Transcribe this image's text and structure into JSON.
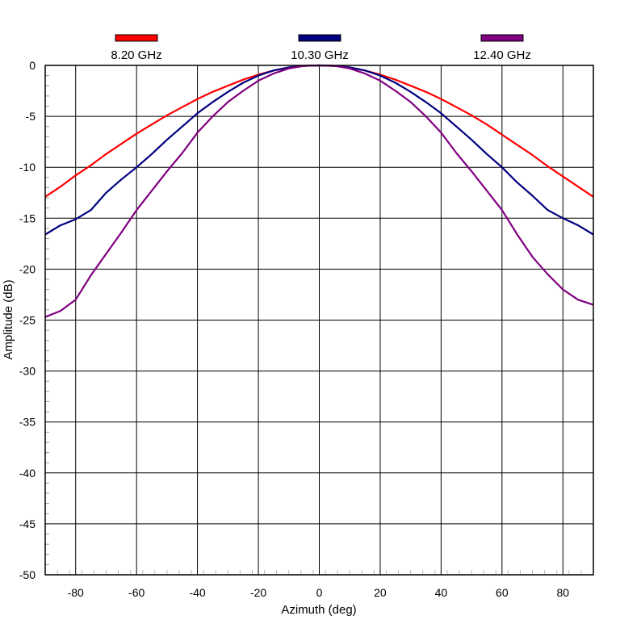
{
  "chart_data": {
    "type": "line",
    "xlabel": "Azimuth (deg)",
    "ylabel": "Amplitude (dB)",
    "xlim": [
      -90,
      90
    ],
    "ylim": [
      -50,
      0
    ],
    "grid": true,
    "legend_position": "top",
    "x_ticks": [
      -80,
      -60,
      -40,
      -20,
      0,
      20,
      40,
      60,
      80
    ],
    "y_ticks": [
      0,
      -5,
      -10,
      -15,
      -20,
      -25,
      -30,
      -35,
      -40,
      -45,
      -50
    ],
    "x_tick_labels": [
      "-80",
      "-60",
      "-40",
      "-20",
      "0",
      "20",
      "40",
      "60",
      "80"
    ],
    "y_tick_labels": [
      "0",
      "-5",
      "-10",
      "-15",
      "-20",
      "-25",
      "-30",
      "-35",
      "-40",
      "-45",
      "-50"
    ],
    "x": [
      -90,
      -85,
      -80,
      -75,
      -70,
      -65,
      -60,
      -55,
      -50,
      -45,
      -40,
      -35,
      -30,
      -25,
      -20,
      -15,
      -10,
      -5,
      0,
      5,
      10,
      15,
      20,
      25,
      30,
      35,
      40,
      45,
      50,
      55,
      60,
      65,
      70,
      75,
      80,
      85,
      90
    ],
    "series": [
      {
        "name": "8.20 GHz",
        "color": "#ff0000",
        "values": [
          -12.9,
          -11.9,
          -10.8,
          -9.8,
          -8.7,
          -7.7,
          -6.7,
          -5.8,
          -4.9,
          -4.1,
          -3.3,
          -2.6,
          -2.0,
          -1.4,
          -0.9,
          -0.5,
          -0.2,
          -0.05,
          0,
          -0.05,
          -0.2,
          -0.5,
          -0.9,
          -1.4,
          -2.0,
          -2.6,
          -3.3,
          -4.1,
          -4.9,
          -5.8,
          -6.8,
          -7.8,
          -8.8,
          -9.9,
          -10.9,
          -11.9,
          -12.9
        ]
      },
      {
        "name": "10.30 GHz",
        "color": "#000080",
        "values": [
          -16.6,
          -15.7,
          -15.1,
          -14.2,
          -12.5,
          -11.2,
          -10.0,
          -8.7,
          -7.3,
          -6.0,
          -4.7,
          -3.6,
          -2.6,
          -1.7,
          -1.0,
          -0.5,
          -0.2,
          -0.05,
          0,
          -0.05,
          -0.2,
          -0.5,
          -1.0,
          -1.7,
          -2.6,
          -3.6,
          -4.7,
          -6.0,
          -7.3,
          -8.7,
          -10.0,
          -11.5,
          -12.8,
          -14.2,
          -15.0,
          -15.7,
          -16.6
        ]
      },
      {
        "name": "12.40 GHz",
        "color": "#800080",
        "values": [
          -24.7,
          -24.1,
          -23.0,
          -20.6,
          -18.5,
          -16.4,
          -14.2,
          -12.3,
          -10.4,
          -8.6,
          -6.6,
          -5.0,
          -3.6,
          -2.5,
          -1.5,
          -0.8,
          -0.3,
          -0.05,
          0,
          -0.05,
          -0.3,
          -0.8,
          -1.5,
          -2.5,
          -3.6,
          -5.0,
          -6.6,
          -8.6,
          -10.4,
          -12.3,
          -14.2,
          -16.6,
          -18.8,
          -20.5,
          -22.0,
          -23.0,
          -23.5
        ]
      }
    ]
  }
}
